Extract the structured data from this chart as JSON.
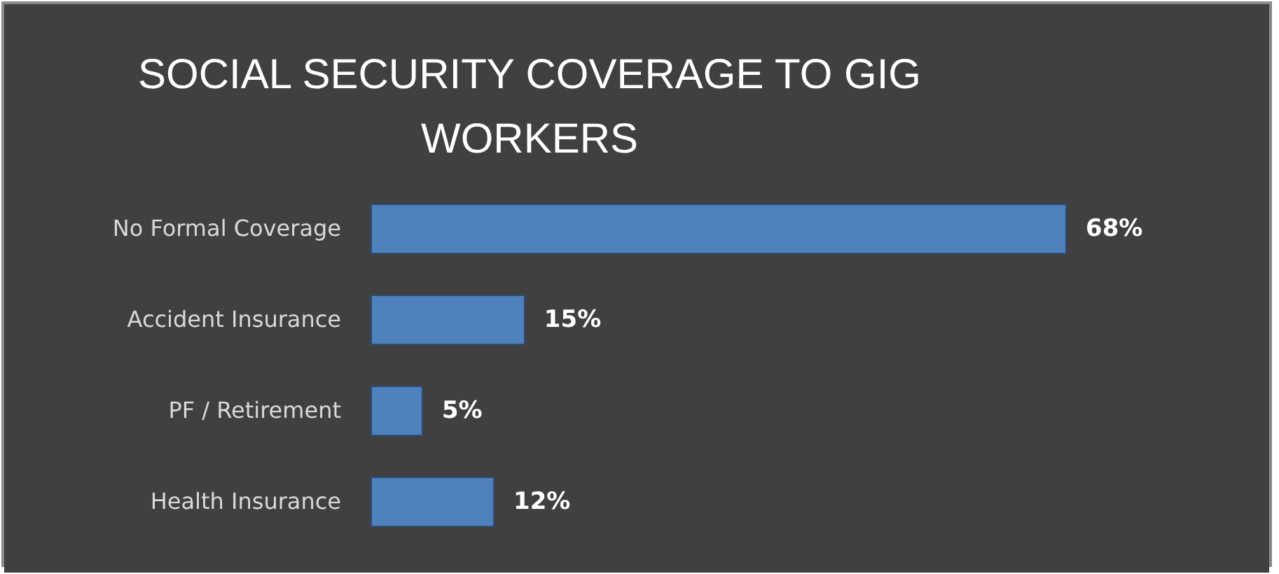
{
  "chart_data": {
    "type": "bar",
    "orientation": "horizontal",
    "title": "SOCIAL SECURITY COVERAGE TO GIG WORKERS",
    "categories": [
      "No Formal Coverage",
      "Accident Insurance",
      "PF / Retirement",
      "Health Insurance"
    ],
    "values": [
      68,
      15,
      5,
      12
    ],
    "value_labels": [
      "68%",
      "15%",
      "5%",
      "12%"
    ],
    "color": "#4f81bd"
  }
}
